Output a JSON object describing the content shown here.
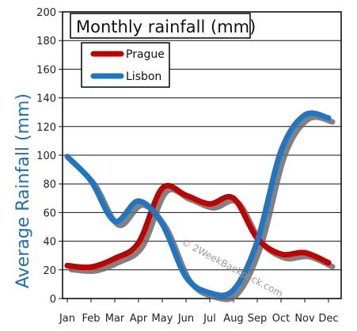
{
  "chart_data": {
    "type": "line",
    "title": "Monthly rainfall (mm)",
    "xlabel": "",
    "ylabel": "Average Rainfall (mm)",
    "categories": [
      "Jan",
      "Feb",
      "Mar",
      "Apr",
      "May",
      "Jun",
      "Jul",
      "Aug",
      "Sep",
      "Oct",
      "Nov",
      "Dec"
    ],
    "ylim": [
      0,
      200
    ],
    "yticks": [
      0,
      20,
      40,
      60,
      80,
      100,
      120,
      140,
      160,
      180,
      200
    ],
    "grid": true,
    "legend_position": "top-left",
    "watermark": "© 2WeekBackpack.com",
    "series": [
      {
        "name": "Prague",
        "color": "#c00000",
        "values": [
          23,
          22,
          28,
          39,
          77,
          72,
          66,
          70,
          42,
          31,
          32,
          25
        ]
      },
      {
        "name": "Lisbon",
        "color": "#1f77c4",
        "values": [
          99,
          82,
          54,
          68,
          52,
          15,
          4,
          6,
          40,
          103,
          128,
          126
        ]
      }
    ]
  }
}
